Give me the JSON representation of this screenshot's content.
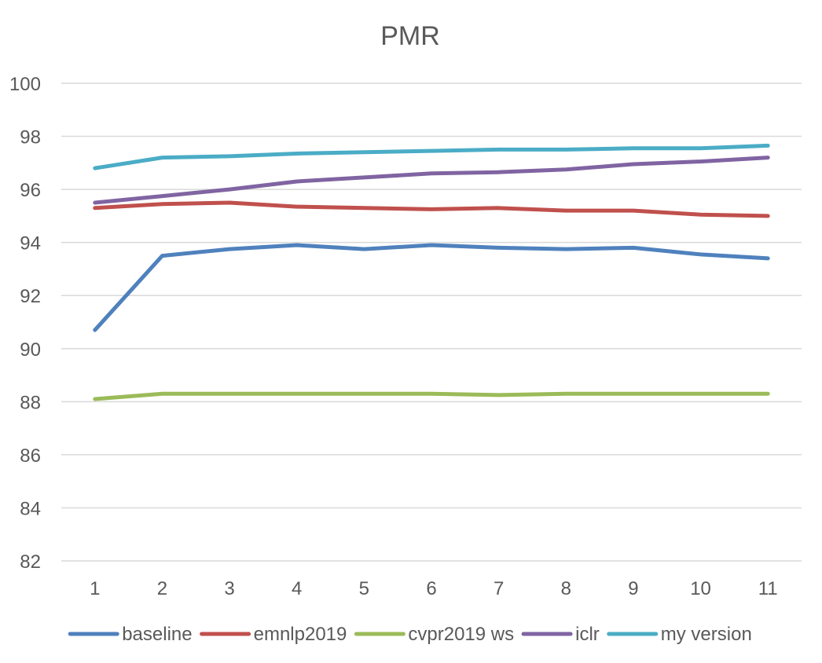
{
  "chart_data": {
    "type": "line",
    "title": "PMR",
    "xlabel": "",
    "ylabel": "",
    "x": [
      1,
      2,
      3,
      4,
      5,
      6,
      7,
      8,
      9,
      10,
      11
    ],
    "ylim": [
      82,
      100
    ],
    "yticks": [
      82,
      84,
      86,
      88,
      90,
      92,
      94,
      96,
      98,
      100
    ],
    "grid": true,
    "legend_position": "bottom",
    "series": [
      {
        "name": "baseline",
        "color": "#4f81bd",
        "values": [
          90.7,
          93.5,
          93.75,
          93.9,
          93.75,
          93.9,
          93.8,
          93.75,
          93.8,
          93.55,
          93.4
        ]
      },
      {
        "name": "emnlp2019",
        "color": "#c0504d",
        "values": [
          95.3,
          95.45,
          95.5,
          95.35,
          95.3,
          95.25,
          95.3,
          95.2,
          95.2,
          95.05,
          95.0
        ]
      },
      {
        "name": "cvpr2019 ws",
        "color": "#9bbb59",
        "values": [
          88.1,
          88.3,
          88.3,
          88.3,
          88.3,
          88.3,
          88.25,
          88.3,
          88.3,
          88.3,
          88.3
        ]
      },
      {
        "name": "iclr",
        "color": "#8064a2",
        "values": [
          95.5,
          95.75,
          96.0,
          96.3,
          96.45,
          96.6,
          96.65,
          96.75,
          96.95,
          97.05,
          97.2
        ]
      },
      {
        "name": "my version",
        "color": "#4bacc6",
        "values": [
          96.8,
          97.2,
          97.25,
          97.35,
          97.4,
          97.45,
          97.5,
          97.5,
          97.55,
          97.55,
          97.65
        ]
      }
    ]
  }
}
